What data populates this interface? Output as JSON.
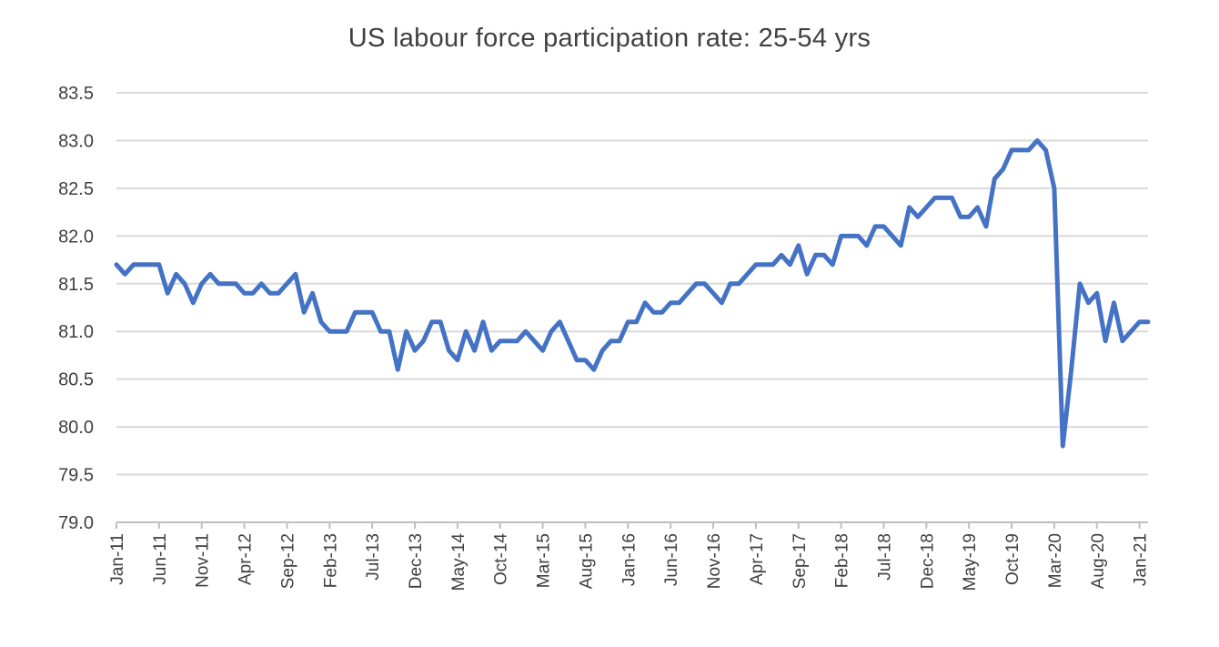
{
  "chart_data": {
    "type": "line",
    "title": "US labour force participation rate: 25-54 yrs",
    "xlabel": "",
    "ylabel": "",
    "ylim": [
      79.0,
      83.5
    ],
    "ytick_step": 0.5,
    "ytick_labels": [
      "79.0",
      "79.5",
      "80.0",
      "80.5",
      "81.0",
      "81.5",
      "82.0",
      "82.5",
      "83.0",
      "83.5"
    ],
    "xtick_labels": [
      "Jan-11",
      "Jun-11",
      "Nov-11",
      "Apr-12",
      "Sep-12",
      "Feb-13",
      "Jul-13",
      "Dec-13",
      "May-14",
      "Oct-14",
      "Mar-15",
      "Aug-15",
      "Jan-16",
      "Jun-16",
      "Nov-16",
      "Apr-17",
      "Sep-17",
      "Feb-18",
      "Jul-18",
      "Dec-18",
      "May-19",
      "Oct-19",
      "Mar-20",
      "Aug-20",
      "Jan-21"
    ],
    "xtick_every_months": 5,
    "grid": true,
    "series": [
      {
        "name": "US labour force participation rate: 25-54 yrs",
        "color": "#4472c4",
        "start": "Jan-11",
        "values": [
          81.7,
          81.6,
          81.7,
          81.7,
          81.7,
          81.7,
          81.4,
          81.6,
          81.5,
          81.3,
          81.5,
          81.6,
          81.5,
          81.5,
          81.5,
          81.4,
          81.4,
          81.5,
          81.4,
          81.4,
          81.5,
          81.6,
          81.2,
          81.4,
          81.1,
          81.0,
          81.0,
          81.0,
          81.2,
          81.2,
          81.2,
          81.0,
          81.0,
          80.6,
          81.0,
          80.8,
          80.9,
          81.1,
          81.1,
          80.8,
          80.7,
          81.0,
          80.8,
          81.1,
          80.8,
          80.9,
          80.9,
          80.9,
          81.0,
          80.9,
          80.8,
          81.0,
          81.1,
          80.9,
          80.7,
          80.7,
          80.6,
          80.8,
          80.9,
          80.9,
          81.1,
          81.1,
          81.3,
          81.2,
          81.2,
          81.3,
          81.3,
          81.4,
          81.5,
          81.5,
          81.4,
          81.3,
          81.5,
          81.5,
          81.6,
          81.7,
          81.7,
          81.7,
          81.8,
          81.7,
          81.9,
          81.6,
          81.8,
          81.8,
          81.7,
          82.0,
          82.0,
          82.0,
          81.9,
          82.1,
          82.1,
          82.0,
          81.9,
          82.3,
          82.2,
          82.3,
          82.4,
          82.4,
          82.4,
          82.2,
          82.2,
          82.3,
          82.1,
          82.6,
          82.7,
          82.9,
          82.9,
          82.9,
          83.0,
          82.9,
          82.5,
          79.8,
          80.6,
          81.5,
          81.3,
          81.4,
          80.9,
          81.3,
          80.9,
          81.0,
          81.1,
          81.1
        ]
      }
    ]
  }
}
